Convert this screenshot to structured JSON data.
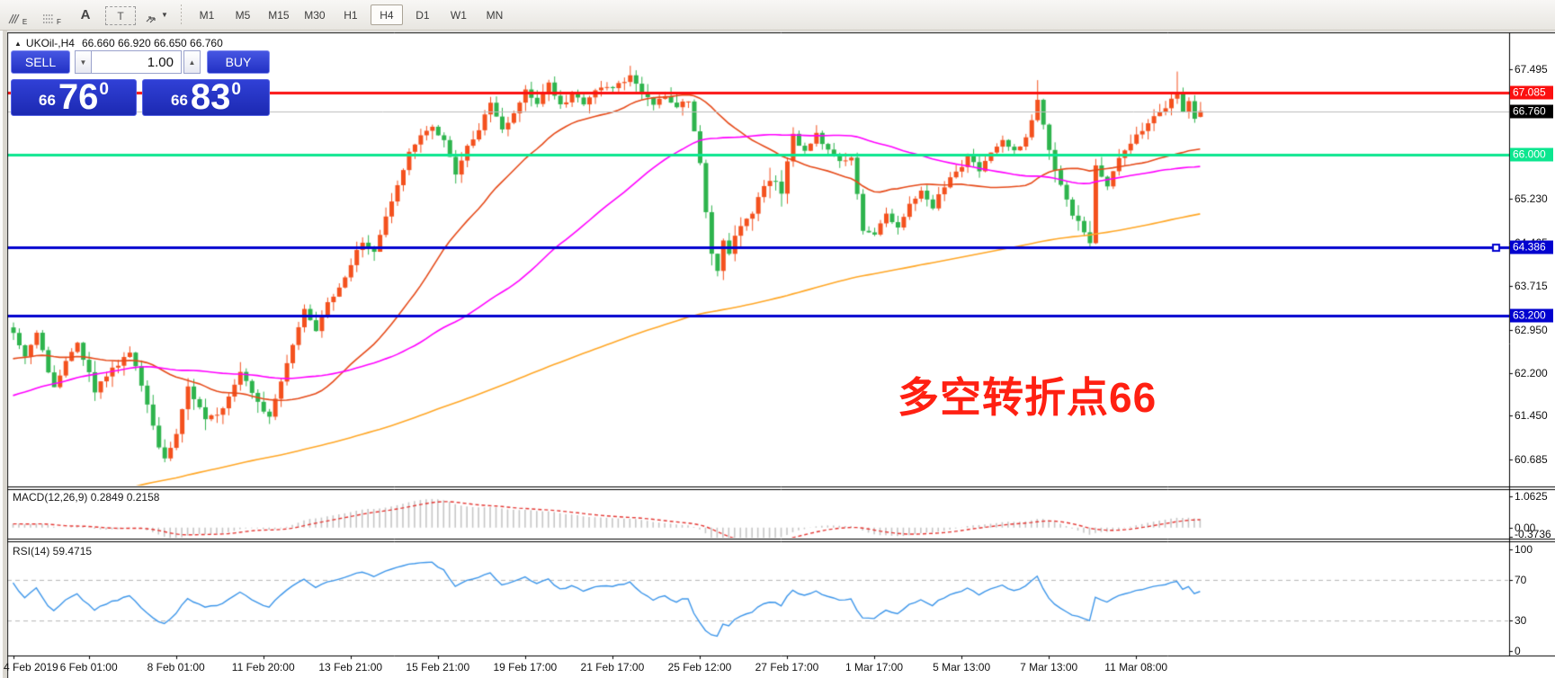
{
  "toolbar": {
    "icons": [
      {
        "name": "charts-overlay-icon",
        "sub": "E"
      },
      {
        "name": "grid-icon",
        "sub": "F"
      },
      {
        "name": "font-icon",
        "label": "A"
      },
      {
        "name": "textbox-icon",
        "label": "T"
      },
      {
        "name": "cursor-arrows-icon",
        "caret": "▼"
      }
    ],
    "timeframes": [
      "M1",
      "M5",
      "M15",
      "M30",
      "H1",
      "H4",
      "D1",
      "W1",
      "MN"
    ],
    "active_timeframe": "H4"
  },
  "chart": {
    "header_arrow": "▲",
    "header_symbol": "UKOil-,H4",
    "header_ohlc": "66.660 66.920 66.650 66.760",
    "trade_panel": {
      "sell_label": "SELL",
      "buy_label": "BUY",
      "volume": "1.00",
      "step_down": "▼",
      "step_up": "▲",
      "bid": {
        "prefix": "66",
        "main": "76",
        "sup": "0"
      },
      "ask": {
        "prefix": "66",
        "main": "83",
        "sup": "0"
      }
    }
  },
  "chart_data": {
    "type": "candlestick",
    "symbol": "UKOil-",
    "timeframe": "H4",
    "annotation": {
      "text": "多空转折点66",
      "color": "#ff2012"
    },
    "last_bar": {
      "open": 66.66,
      "high": 66.92,
      "low": 66.65,
      "close": 66.76
    },
    "visible_bars": 205,
    "up_color": "#f4511e",
    "down_color": "#2eb44d",
    "close_waypoints": [
      [
        0,
        62.95
      ],
      [
        2,
        62.5
      ],
      [
        4,
        62.85
      ],
      [
        7,
        61.95
      ],
      [
        9,
        62.35
      ],
      [
        11,
        62.7
      ],
      [
        14,
        61.9
      ],
      [
        17,
        62.25
      ],
      [
        20,
        62.6
      ],
      [
        23,
        61.6
      ],
      [
        25,
        60.95
      ],
      [
        26,
        60.72
      ],
      [
        28,
        61.15
      ],
      [
        30,
        61.95
      ],
      [
        33,
        61.35
      ],
      [
        36,
        61.6
      ],
      [
        39,
        62.25
      ],
      [
        42,
        61.7
      ],
      [
        44,
        61.45
      ],
      [
        46,
        62.05
      ],
      [
        48,
        62.65
      ],
      [
        50,
        63.35
      ],
      [
        52,
        62.95
      ],
      [
        54,
        63.4
      ],
      [
        56,
        63.65
      ],
      [
        58,
        64.1
      ],
      [
        60,
        64.5
      ],
      [
        62,
        64.3
      ],
      [
        64,
        64.9
      ],
      [
        66,
        65.45
      ],
      [
        68,
        66.05
      ],
      [
        70,
        66.35
      ],
      [
        72,
        66.5
      ],
      [
        74,
        66.25
      ],
      [
        76,
        65.65
      ],
      [
        78,
        66.15
      ],
      [
        80,
        66.45
      ],
      [
        82,
        66.9
      ],
      [
        84,
        66.4
      ],
      [
        86,
        66.75
      ],
      [
        88,
        67.1
      ],
      [
        90,
        66.9
      ],
      [
        92,
        67.25
      ],
      [
        94,
        66.85
      ],
      [
        96,
        67.05
      ],
      [
        98,
        66.9
      ],
      [
        100,
        67.1
      ],
      [
        103,
        67.2
      ],
      [
        106,
        67.35
      ],
      [
        108,
        67.1
      ],
      [
        110,
        66.9
      ],
      [
        112,
        67.05
      ],
      [
        114,
        66.85
      ],
      [
        116,
        66.95
      ],
      [
        118,
        65.9
      ],
      [
        119,
        65.0
      ],
      [
        120,
        64.3
      ],
      [
        121,
        64.0
      ],
      [
        122,
        64.5
      ],
      [
        123,
        64.25
      ],
      [
        124,
        64.6
      ],
      [
        126,
        64.85
      ],
      [
        128,
        65.2
      ],
      [
        130,
        65.6
      ],
      [
        132,
        65.35
      ],
      [
        134,
        66.3
      ],
      [
        136,
        66.05
      ],
      [
        138,
        66.35
      ],
      [
        140,
        66.1
      ],
      [
        142,
        65.85
      ],
      [
        144,
        65.95
      ],
      [
        146,
        64.7
      ],
      [
        148,
        64.6
      ],
      [
        150,
        64.95
      ],
      [
        152,
        64.7
      ],
      [
        154,
        65.15
      ],
      [
        156,
        65.35
      ],
      [
        158,
        65.1
      ],
      [
        160,
        65.45
      ],
      [
        162,
        65.7
      ],
      [
        164,
        65.95
      ],
      [
        166,
        65.75
      ],
      [
        168,
        66.05
      ],
      [
        170,
        66.25
      ],
      [
        172,
        66.05
      ],
      [
        174,
        66.3
      ],
      [
        176,
        66.9
      ],
      [
        178,
        66.1
      ],
      [
        180,
        65.45
      ],
      [
        182,
        64.95
      ],
      [
        184,
        64.65
      ],
      [
        185,
        64.5
      ],
      [
        186,
        65.85
      ],
      [
        188,
        65.45
      ],
      [
        190,
        65.9
      ],
      [
        192,
        66.2
      ],
      [
        194,
        66.45
      ],
      [
        196,
        66.7
      ],
      [
        198,
        66.85
      ],
      [
        200,
        67.1
      ],
      [
        201,
        66.75
      ],
      [
        202,
        66.95
      ],
      [
        203,
        66.65
      ],
      [
        204,
        66.76
      ]
    ],
    "extremes": {
      "26": {
        "low": 60.64
      },
      "106": {
        "high": 67.55
      },
      "121": {
        "low": 63.88
      },
      "176": {
        "high": 67.3
      },
      "185": {
        "low": 64.36
      },
      "200": {
        "high": 67.45
      },
      "204": {
        "open": 66.66,
        "high": 66.92,
        "low": 66.65,
        "close": 66.76
      }
    },
    "volatility_segments": [
      [
        0,
        45,
        1.25
      ],
      [
        45,
        118,
        1.0
      ],
      [
        118,
        135,
        1.5
      ],
      [
        135,
        176,
        0.9
      ],
      [
        176,
        187,
        1.4
      ],
      [
        187,
        205,
        1.0
      ]
    ],
    "y_axis": {
      "min": 60.23,
      "max": 68.13,
      "plain_ticks": [
        "67.495",
        "65.230",
        "64.465",
        "63.715",
        "62.950",
        "62.200",
        "61.450",
        "60.685"
      ],
      "badges": [
        {
          "label": "67.085",
          "price": 67.085,
          "bg": "#fb1010"
        },
        {
          "label": "66.760",
          "price": 66.76,
          "bg": "#000000"
        },
        {
          "label": "66.000",
          "price": 66.0,
          "bg": "#0ce68f"
        },
        {
          "label": "64.386",
          "price": 64.386,
          "bg": "#0202cf"
        },
        {
          "label": "63.200",
          "price": 63.2,
          "bg": "#0202cf"
        }
      ]
    },
    "horizontal_lines": [
      {
        "price": 67.085,
        "color": "#fb1010",
        "width": 3
      },
      {
        "price": 66.76,
        "color": "#bdbdbd",
        "width": 1
      },
      {
        "price": 66.0,
        "color": "#0ce68f",
        "width": 3
      },
      {
        "price": 64.386,
        "color": "#0202cf",
        "width": 3,
        "handle": true
      },
      {
        "price": 63.2,
        "color": "#0202cf",
        "width": 3
      }
    ],
    "moving_averages": [
      {
        "window": 30,
        "color": "#e64a19"
      },
      {
        "window": 65,
        "color": "#ff00ff"
      },
      {
        "window": 200,
        "color": "#ffa726"
      }
    ],
    "x_labels": [
      {
        "label": "4 Feb 2019",
        "bar": 0
      },
      {
        "label": "6 Feb 01:00",
        "bar": 13
      },
      {
        "label": "8 Feb 01:00",
        "bar": 28
      },
      {
        "label": "11 Feb 20:00",
        "bar": 43
      },
      {
        "label": "13 Feb 21:00",
        "bar": 58
      },
      {
        "label": "15 Feb 21:00",
        "bar": 73
      },
      {
        "label": "19 Feb 17:00",
        "bar": 88
      },
      {
        "label": "21 Feb 17:00",
        "bar": 103
      },
      {
        "label": "25 Feb 12:00",
        "bar": 118
      },
      {
        "label": "27 Feb 17:00",
        "bar": 133
      },
      {
        "label": "1 Mar 17:00",
        "bar": 148
      },
      {
        "label": "5 Mar 13:00",
        "bar": 163
      },
      {
        "label": "7 Mar 13:00",
        "bar": 178
      },
      {
        "label": "11 Mar 08:00",
        "bar": 193
      }
    ],
    "macd": {
      "label": "MACD(12,26,9) 0.2849 0.2158",
      "params": [
        12,
        26,
        9
      ],
      "axis_ticks": [
        {
          "label": "1.0625",
          "value": 1.0625
        },
        {
          "label": "0.00",
          "value": 0.0
        },
        {
          "label": "-0.3736",
          "value": -0.3736
        }
      ],
      "scale_max": 1.0625,
      "scale_min": -0.3736,
      "histogram_color": "#c6c6c6",
      "signal_color": "#e53935"
    },
    "rsi": {
      "label": "RSI(14) 59.4715",
      "period": 14,
      "value": 59.4715,
      "axis_ticks": [
        {
          "label": "100",
          "value": 100
        },
        {
          "label": "70",
          "value": 70
        },
        {
          "label": "30",
          "value": 30
        },
        {
          "label": "0",
          "value": 0
        }
      ],
      "dashed_levels": [
        70,
        30
      ],
      "color": "#3d96ea"
    }
  }
}
